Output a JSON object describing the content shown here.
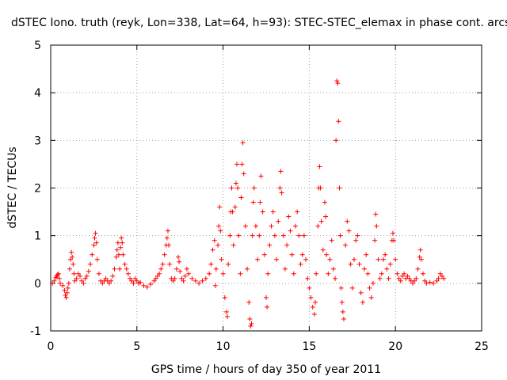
{
  "chart_data": {
    "type": "scatter",
    "title": "dSTEC Iono. truth (reyk, Lon=338, Lat=64, h=93): STEC-STEC_elemax in phase cont. arcs",
    "xlabel": "GPS time / hours of day 350 of year 2011",
    "ylabel": "dSTEC  / TECUs",
    "xlim": [
      0,
      25
    ],
    "ylim": [
      -1,
      5
    ],
    "xticks": [
      0,
      5,
      10,
      15,
      20,
      25
    ],
    "yticks": [
      -1,
      0,
      1,
      2,
      3,
      4,
      5
    ],
    "xtick_labels": [
      "0",
      "5",
      "10",
      "15",
      "20",
      "25"
    ],
    "ytick_labels": [
      "-1",
      "0",
      "1",
      "2",
      "3",
      "4",
      "5"
    ],
    "grid": true,
    "marker": "plus",
    "color": "#ff0000",
    "series": [
      {
        "name": "dSTEC",
        "points": [
          [
            0.1,
            0.0
          ],
          [
            0.2,
            0.05
          ],
          [
            0.3,
            0.12
          ],
          [
            0.35,
            0.15
          ],
          [
            0.4,
            0.18
          ],
          [
            0.45,
            0.2
          ],
          [
            0.5,
            0.1
          ],
          [
            0.55,
            0.0
          ],
          [
            0.7,
            -0.05
          ],
          [
            0.8,
            -0.15
          ],
          [
            0.85,
            -0.25
          ],
          [
            0.9,
            -0.3
          ],
          [
            0.95,
            -0.2
          ],
          [
            1.0,
            -0.1
          ],
          [
            1.05,
            0.0
          ],
          [
            1.1,
            0.3
          ],
          [
            1.15,
            0.5
          ],
          [
            1.2,
            0.65
          ],
          [
            1.25,
            0.55
          ],
          [
            1.3,
            0.4
          ],
          [
            1.35,
            0.2
          ],
          [
            1.4,
            0.05
          ],
          [
            1.5,
            0.1
          ],
          [
            1.6,
            0.2
          ],
          [
            1.7,
            0.15
          ],
          [
            1.8,
            0.05
          ],
          [
            1.9,
            0.0
          ],
          [
            2.0,
            0.1
          ],
          [
            2.1,
            0.15
          ],
          [
            2.2,
            0.25
          ],
          [
            2.3,
            0.4
          ],
          [
            2.4,
            0.6
          ],
          [
            2.5,
            0.8
          ],
          [
            2.55,
            0.95
          ],
          [
            2.6,
            1.05
          ],
          [
            2.65,
            0.85
          ],
          [
            2.7,
            0.5
          ],
          [
            2.8,
            0.2
          ],
          [
            2.9,
            0.05
          ],
          [
            3.0,
            0.0
          ],
          [
            3.1,
            0.05
          ],
          [
            3.2,
            0.1
          ],
          [
            3.3,
            0.05
          ],
          [
            3.4,
            0.0
          ],
          [
            3.5,
            0.05
          ],
          [
            3.6,
            0.15
          ],
          [
            3.7,
            0.3
          ],
          [
            3.8,
            0.55
          ],
          [
            3.85,
            0.7
          ],
          [
            3.9,
            0.85
          ],
          [
            3.95,
            0.6
          ],
          [
            4.0,
            0.3
          ],
          [
            4.05,
            0.75
          ],
          [
            4.1,
            0.95
          ],
          [
            4.15,
            0.85
          ],
          [
            4.2,
            0.6
          ],
          [
            4.3,
            0.4
          ],
          [
            4.4,
            0.3
          ],
          [
            4.5,
            0.2
          ],
          [
            4.6,
            0.1
          ],
          [
            4.7,
            0.05
          ],
          [
            4.8,
            0.0
          ],
          [
            4.9,
            0.1
          ],
          [
            5.0,
            0.05
          ],
          [
            5.1,
            0.0
          ],
          [
            5.2,
            0.02
          ],
          [
            5.4,
            -0.05
          ],
          [
            5.6,
            -0.08
          ],
          [
            5.8,
            -0.02
          ],
          [
            6.0,
            0.05
          ],
          [
            6.1,
            0.1
          ],
          [
            6.2,
            0.15
          ],
          [
            6.3,
            0.2
          ],
          [
            6.4,
            0.3
          ],
          [
            6.5,
            0.4
          ],
          [
            6.6,
            0.6
          ],
          [
            6.7,
            0.8
          ],
          [
            6.75,
            0.95
          ],
          [
            6.8,
            1.1
          ],
          [
            6.85,
            0.8
          ],
          [
            6.9,
            0.4
          ],
          [
            7.0,
            0.1
          ],
          [
            7.1,
            0.05
          ],
          [
            7.2,
            0.1
          ],
          [
            7.3,
            0.3
          ],
          [
            7.4,
            0.55
          ],
          [
            7.45,
            0.45
          ],
          [
            7.5,
            0.25
          ],
          [
            7.6,
            0.1
          ],
          [
            7.7,
            0.05
          ],
          [
            7.8,
            0.15
          ],
          [
            7.9,
            0.3
          ],
          [
            8.0,
            0.2
          ],
          [
            8.2,
            0.1
          ],
          [
            8.4,
            0.05
          ],
          [
            8.6,
            0.0
          ],
          [
            8.8,
            0.05
          ],
          [
            9.0,
            0.1
          ],
          [
            9.2,
            0.2
          ],
          [
            9.3,
            0.4
          ],
          [
            9.4,
            0.7
          ],
          [
            9.5,
            0.9
          ],
          [
            9.55,
            -0.05
          ],
          [
            9.6,
            0.3
          ],
          [
            9.7,
            0.8
          ],
          [
            9.75,
            1.2
          ],
          [
            9.8,
            1.6
          ],
          [
            9.85,
            1.1
          ],
          [
            9.9,
            0.5
          ],
          [
            10.0,
            0.2
          ],
          [
            10.1,
            -0.3
          ],
          [
            10.2,
            -0.6
          ],
          [
            10.25,
            -0.7
          ],
          [
            10.3,
            0.4
          ],
          [
            10.4,
            1.0
          ],
          [
            10.45,
            1.5
          ],
          [
            10.5,
            2.0
          ],
          [
            10.55,
            1.5
          ],
          [
            10.6,
            0.8
          ],
          [
            10.7,
            1.6
          ],
          [
            10.75,
            2.1
          ],
          [
            10.8,
            2.5
          ],
          [
            10.85,
            2.0
          ],
          [
            10.9,
            1.0
          ],
          [
            11.0,
            0.2
          ],
          [
            11.05,
            1.8
          ],
          [
            11.1,
            2.5
          ],
          [
            11.15,
            2.95
          ],
          [
            11.2,
            2.3
          ],
          [
            11.3,
            1.2
          ],
          [
            11.4,
            0.3
          ],
          [
            11.5,
            -0.4
          ],
          [
            11.55,
            -0.75
          ],
          [
            11.6,
            -0.9
          ],
          [
            11.65,
            -0.85
          ],
          [
            11.7,
            1.0
          ],
          [
            11.75,
            1.7
          ],
          [
            11.8,
            2.0
          ],
          [
            11.9,
            1.2
          ],
          [
            12.0,
            0.5
          ],
          [
            12.1,
            1.0
          ],
          [
            12.15,
            1.7
          ],
          [
            12.2,
            2.25
          ],
          [
            12.3,
            1.5
          ],
          [
            12.4,
            0.6
          ],
          [
            12.5,
            -0.3
          ],
          [
            12.55,
            -0.5
          ],
          [
            12.6,
            0.2
          ],
          [
            12.7,
            0.8
          ],
          [
            12.8,
            1.2
          ],
          [
            12.9,
            1.5
          ],
          [
            13.0,
            1.0
          ],
          [
            13.1,
            0.5
          ],
          [
            13.2,
            1.3
          ],
          [
            13.3,
            2.0
          ],
          [
            13.35,
            2.35
          ],
          [
            13.4,
            1.9
          ],
          [
            13.5,
            1.0
          ],
          [
            13.6,
            0.3
          ],
          [
            13.7,
            0.8
          ],
          [
            13.8,
            1.4
          ],
          [
            13.9,
            1.1
          ],
          [
            14.0,
            0.6
          ],
          [
            14.1,
            0.2
          ],
          [
            14.2,
            1.2
          ],
          [
            14.3,
            1.5
          ],
          [
            14.4,
            1.0
          ],
          [
            14.5,
            0.4
          ],
          [
            14.6,
            0.6
          ],
          [
            14.7,
            1.0
          ],
          [
            14.8,
            0.5
          ],
          [
            14.9,
            0.1
          ],
          [
            15.0,
            -0.1
          ],
          [
            15.1,
            -0.3
          ],
          [
            15.2,
            -0.5
          ],
          [
            15.3,
            -0.65
          ],
          [
            15.35,
            -0.4
          ],
          [
            15.4,
            0.2
          ],
          [
            15.5,
            1.2
          ],
          [
            15.55,
            2.0
          ],
          [
            15.6,
            2.45
          ],
          [
            15.65,
            2.0
          ],
          [
            15.7,
            1.3
          ],
          [
            15.8,
            0.7
          ],
          [
            15.9,
            1.7
          ],
          [
            15.95,
            1.4
          ],
          [
            16.0,
            0.6
          ],
          [
            16.1,
            0.2
          ],
          [
            16.2,
            0.5
          ],
          [
            16.3,
            0.9
          ],
          [
            16.4,
            0.3
          ],
          [
            16.5,
            0.1
          ],
          [
            16.55,
            3.0
          ],
          [
            16.6,
            4.25
          ],
          [
            16.65,
            4.2
          ],
          [
            16.7,
            3.4
          ],
          [
            16.75,
            2.0
          ],
          [
            16.8,
            1.0
          ],
          [
            16.85,
            -0.1
          ],
          [
            16.9,
            -0.4
          ],
          [
            16.95,
            -0.6
          ],
          [
            17.0,
            -0.75
          ],
          [
            17.1,
            0.8
          ],
          [
            17.2,
            1.3
          ],
          [
            17.3,
            1.1
          ],
          [
            17.4,
            0.4
          ],
          [
            17.5,
            -0.1
          ],
          [
            17.6,
            0.5
          ],
          [
            17.7,
            0.9
          ],
          [
            17.8,
            1.0
          ],
          [
            17.9,
            0.4
          ],
          [
            18.0,
            -0.2
          ],
          [
            18.1,
            -0.4
          ],
          [
            18.2,
            0.3
          ],
          [
            18.3,
            0.6
          ],
          [
            18.4,
            0.2
          ],
          [
            18.5,
            -0.1
          ],
          [
            18.6,
            -0.3
          ],
          [
            18.7,
            0.0
          ],
          [
            18.8,
            0.9
          ],
          [
            18.85,
            1.45
          ],
          [
            18.9,
            1.2
          ],
          [
            19.0,
            0.5
          ],
          [
            19.1,
            0.1
          ],
          [
            19.2,
            0.2
          ],
          [
            19.3,
            0.5
          ],
          [
            19.4,
            0.6
          ],
          [
            19.5,
            0.3
          ],
          [
            19.6,
            0.1
          ],
          [
            19.7,
            0.4
          ],
          [
            19.8,
            0.9
          ],
          [
            19.85,
            1.05
          ],
          [
            19.9,
            0.9
          ],
          [
            20.0,
            0.5
          ],
          [
            20.1,
            0.2
          ],
          [
            20.2,
            0.1
          ],
          [
            20.3,
            0.05
          ],
          [
            20.4,
            0.15
          ],
          [
            20.5,
            0.2
          ],
          [
            20.6,
            0.1
          ],
          [
            20.7,
            0.15
          ],
          [
            20.8,
            0.1
          ],
          [
            20.9,
            0.05
          ],
          [
            21.0,
            0.0
          ],
          [
            21.1,
            0.05
          ],
          [
            21.2,
            0.1
          ],
          [
            21.3,
            0.3
          ],
          [
            21.4,
            0.55
          ],
          [
            21.45,
            0.7
          ],
          [
            21.5,
            0.5
          ],
          [
            21.6,
            0.2
          ],
          [
            21.7,
            0.05
          ],
          [
            21.8,
            0.0
          ],
          [
            22.0,
            0.02
          ],
          [
            22.2,
            0.0
          ],
          [
            22.4,
            0.05
          ],
          [
            22.5,
            0.1
          ],
          [
            22.6,
            0.2
          ],
          [
            22.7,
            0.15
          ],
          [
            22.8,
            0.1
          ]
        ]
      }
    ]
  }
}
